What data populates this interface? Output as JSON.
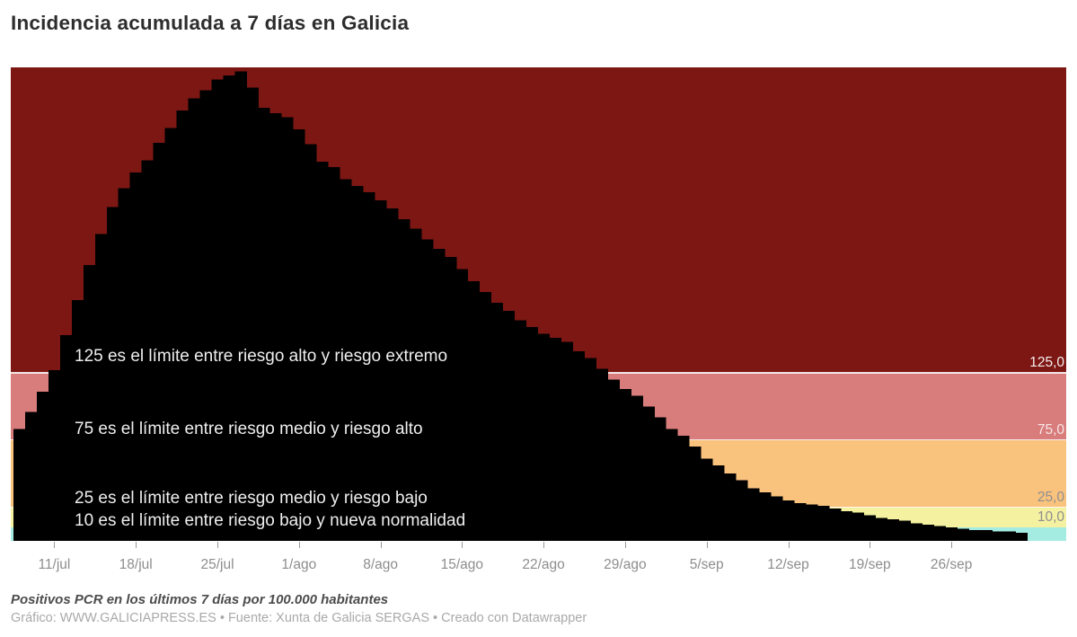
{
  "title": "Incidencia acumulada a 7 días en Galicia",
  "footer": {
    "note": "Positivos PCR en los últimos 7 días por 100.000 habitantes",
    "byline": "Gráfico: WWW.GALICIAPRESS.ES • Fuente: Xunta de Galicia SERGAS • Creado con Datawrapper"
  },
  "chart_data": {
    "type": "bar",
    "title": "Incidencia acumulada a 7 días en Galicia",
    "ylabel": "Positivos PCR en los últimos 7 días por 100.000 habitantes",
    "ylim": [
      0,
      352
    ],
    "grid": false,
    "bar_color": "#000000",
    "x": [
      "8/jul",
      "9/jul",
      "10/jul",
      "11/jul",
      "12/jul",
      "13/jul",
      "14/jul",
      "15/jul",
      "16/jul",
      "17/jul",
      "18/jul",
      "19/jul",
      "20/jul",
      "21/jul",
      "22/jul",
      "23/jul",
      "24/jul",
      "25/jul",
      "26/jul",
      "27/jul",
      "28/jul",
      "29/jul",
      "30/jul",
      "31/jul",
      "1/ago",
      "2/ago",
      "3/ago",
      "4/ago",
      "5/ago",
      "6/ago",
      "7/ago",
      "8/ago",
      "9/ago",
      "10/ago",
      "11/ago",
      "12/ago",
      "13/ago",
      "14/ago",
      "15/ago",
      "16/ago",
      "17/ago",
      "18/ago",
      "19/ago",
      "20/ago",
      "21/ago",
      "22/ago",
      "23/ago",
      "24/ago",
      "25/ago",
      "26/ago",
      "27/ago",
      "28/ago",
      "29/ago",
      "30/ago",
      "31/ago",
      "1/sep",
      "2/sep",
      "3/sep",
      "4/sep",
      "5/sep",
      "6/sep",
      "7/sep",
      "8/sep",
      "9/sep",
      "10/sep",
      "11/sep",
      "12/sep",
      "13/sep",
      "14/sep",
      "15/sep",
      "16/sep",
      "17/sep",
      "18/sep",
      "19/sep",
      "20/sep",
      "21/sep",
      "22/sep",
      "23/sep",
      "24/sep",
      "25/sep",
      "26/sep",
      "27/sep",
      "28/sep",
      "29/sep",
      "30/sep",
      "1/oct",
      "2/oct"
    ],
    "values": [
      83,
      96,
      111,
      127,
      153,
      179,
      205,
      228,
      248,
      262,
      274,
      283,
      296,
      307,
      320,
      329,
      335,
      343,
      346,
      349,
      337,
      322,
      318,
      315,
      306,
      295,
      282,
      278,
      269,
      264,
      259,
      253,
      247,
      239,
      232,
      224,
      217,
      211,
      202,
      193,
      185,
      177,
      171,
      164,
      159,
      154,
      151,
      148,
      141,
      136,
      128,
      120,
      113,
      108,
      100,
      92,
      83,
      78,
      70,
      61,
      56,
      50,
      45,
      39,
      36,
      33,
      30,
      28,
      27,
      26,
      24,
      22,
      21,
      19,
      17,
      16,
      15,
      13,
      12,
      11,
      10,
      9,
      8,
      8,
      7,
      7,
      6
    ],
    "x_tick_labels": [
      "11/jul",
      "18/jul",
      "25/jul",
      "1/ago",
      "8/ago",
      "15/ago",
      "22/ago",
      "29/ago",
      "5/sep",
      "12/sep",
      "19/sep",
      "26/sep"
    ],
    "x_tick_day_indices": [
      3,
      10,
      17,
      24,
      31,
      38,
      45,
      52,
      59,
      66,
      73,
      80
    ],
    "bands": [
      {
        "name": "riesgo extremo",
        "from": 125,
        "to": 352,
        "color": "#7c1713"
      },
      {
        "name": "riesgo alto",
        "from": 75,
        "to": 125,
        "color": "#d87c7c"
      },
      {
        "name": "riesgo medio",
        "from": 25,
        "to": 75,
        "color": "#f9c27d"
      },
      {
        "name": "riesgo bajo",
        "from": 10,
        "to": 25,
        "color": "#f4f1a1"
      },
      {
        "name": "nueva normalidad",
        "from": 0,
        "to": 10,
        "color": "#a4ece2"
      }
    ],
    "reference_lines": [
      {
        "value": 125,
        "label": "125,0",
        "line": true,
        "label_color": "rgba(255,255,255,0.93)"
      },
      {
        "value": 75,
        "label": "75,0",
        "line": true,
        "label_color": "rgba(255,255,255,0.82)"
      },
      {
        "value": 25,
        "label": "25,0",
        "line": true,
        "label_color": "#8f8f8f"
      },
      {
        "value": 10,
        "label": "10,0",
        "line": false,
        "label_color": "#8f8f8f"
      }
    ],
    "annotations": [
      {
        "text": "125 es el límite entre riesgo alto y riesgo extremo",
        "anchor_value": 137.5
      },
      {
        "text": "75 es el límite entre riesgo medio y riesgo alto",
        "anchor_value": 83
      },
      {
        "text": "25 es el límite entre riesgo medio y riesgo bajo",
        "anchor_value": 31.5
      },
      {
        "text": "10 es el límite entre riesgo bajo y nueva normalidad",
        "anchor_value": 14.7
      }
    ]
  }
}
